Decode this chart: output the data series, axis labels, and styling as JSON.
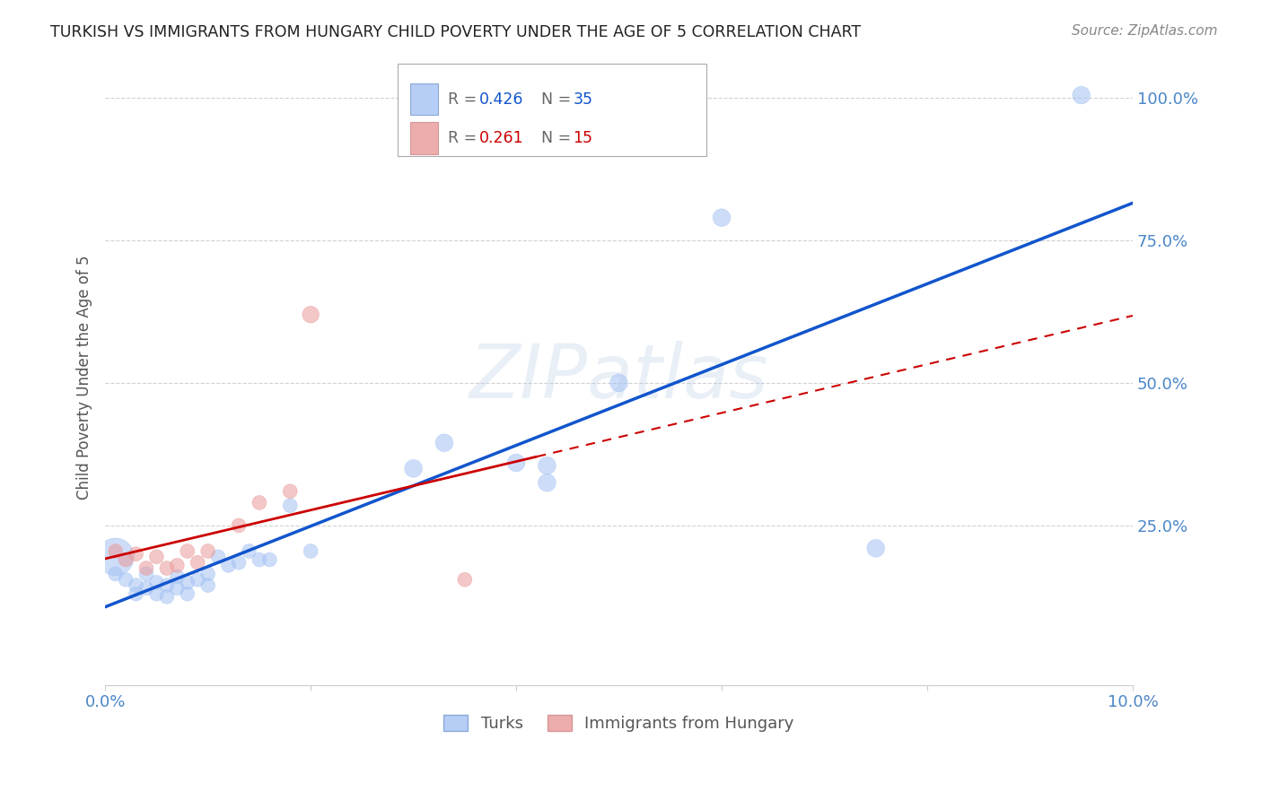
{
  "title": "TURKISH VS IMMIGRANTS FROM HUNGARY CHILD POVERTY UNDER THE AGE OF 5 CORRELATION CHART",
  "source": "Source: ZipAtlas.com",
  "ylabel_label": "Child Poverty Under the Age of 5",
  "x_min": 0.0,
  "x_max": 0.1,
  "y_min": 0.0,
  "y_max": 1.05,
  "turks_R": 0.426,
  "turks_N": 35,
  "hungary_R": 0.261,
  "hungary_N": 15,
  "turks_color": "#a4c2f4",
  "hungary_color": "#ea9999",
  "trend_turks_color": "#1155cc",
  "trend_hungary_color": "#cc0000",
  "background_color": "#ffffff",
  "grid_color": "#cccccc",
  "watermark": "ZIPatlas",
  "turks_x": [
    0.001,
    0.001,
    0.002,
    0.003,
    0.003,
    0.004,
    0.004,
    0.005,
    0.005,
    0.006,
    0.006,
    0.007,
    0.007,
    0.008,
    0.008,
    0.009,
    0.01,
    0.01,
    0.011,
    0.012,
    0.013,
    0.014,
    0.015,
    0.016,
    0.018,
    0.02,
    0.03,
    0.033,
    0.04,
    0.043,
    0.043,
    0.05,
    0.06,
    0.075,
    0.095
  ],
  "turks_y": [
    0.195,
    0.165,
    0.155,
    0.145,
    0.13,
    0.165,
    0.14,
    0.15,
    0.13,
    0.145,
    0.125,
    0.16,
    0.14,
    0.15,
    0.13,
    0.155,
    0.165,
    0.145,
    0.195,
    0.18,
    0.185,
    0.205,
    0.19,
    0.19,
    0.285,
    0.205,
    0.35,
    0.395,
    0.36,
    0.355,
    0.325,
    0.5,
    0.79,
    0.21,
    1.005
  ],
  "turks_size": [
    900,
    130,
    130,
    130,
    130,
    130,
    130,
    130,
    130,
    130,
    130,
    130,
    130,
    130,
    130,
    130,
    130,
    130,
    130,
    130,
    130,
    130,
    130,
    130,
    130,
    130,
    200,
    200,
    200,
    200,
    200,
    200,
    200,
    200,
    200
  ],
  "hungary_x": [
    0.001,
    0.002,
    0.003,
    0.004,
    0.005,
    0.006,
    0.007,
    0.008,
    0.009,
    0.01,
    0.013,
    0.015,
    0.018,
    0.02,
    0.035
  ],
  "hungary_y": [
    0.205,
    0.19,
    0.2,
    0.175,
    0.195,
    0.175,
    0.18,
    0.205,
    0.185,
    0.205,
    0.25,
    0.29,
    0.31,
    0.62,
    0.155
  ],
  "hungary_size": [
    130,
    130,
    130,
    130,
    130,
    130,
    130,
    130,
    130,
    130,
    130,
    130,
    130,
    180,
    130
  ]
}
